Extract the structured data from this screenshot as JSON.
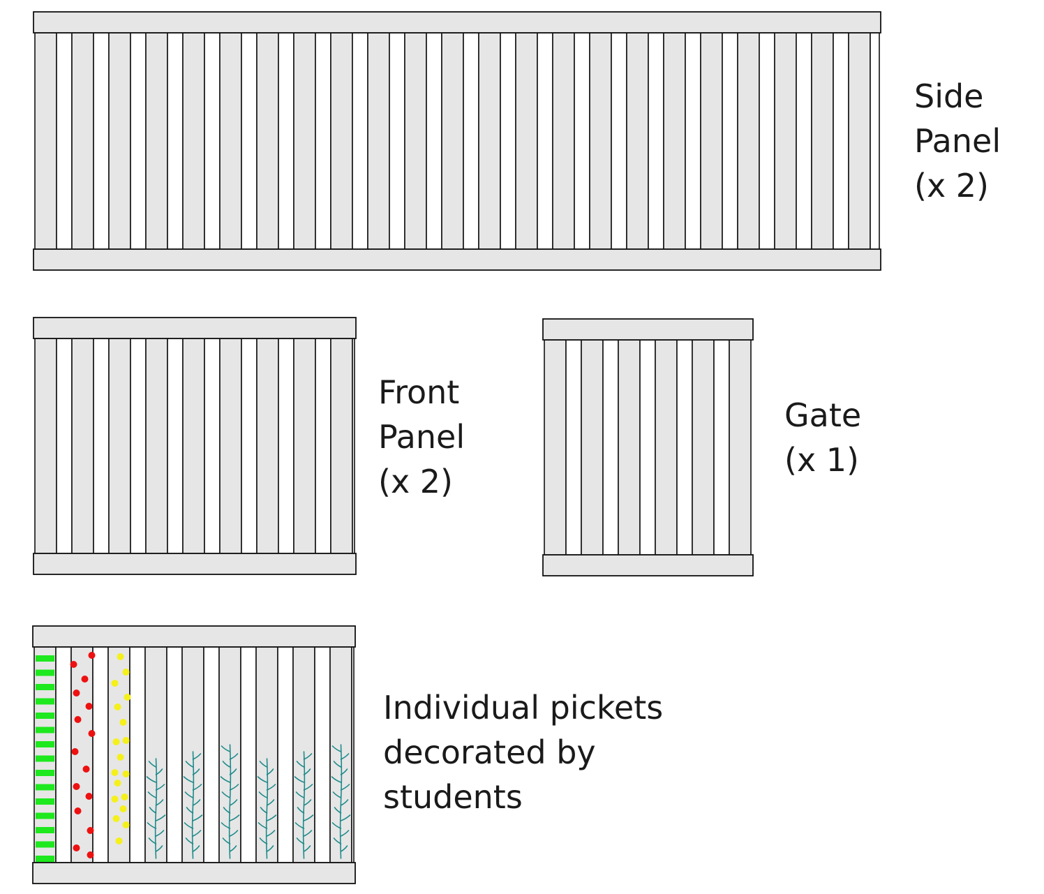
{
  "panels": {
    "side": {
      "lines": [
        "Side",
        "Panel",
        "(x 2)"
      ]
    },
    "front": {
      "lines": [
        "Front",
        "Panel",
        "(x 2)"
      ]
    },
    "gate": {
      "lines": [
        "Gate",
        "(x 1)"
      ]
    },
    "decorated": {
      "lines": [
        "Individual pickets",
        "decorated by",
        "students"
      ]
    }
  },
  "colors": {
    "picket_fill": "#e6e6e6",
    "gap_fill": "#ffffff",
    "outline": "#111111",
    "stripe_green": "#1ee81e",
    "dot_red": "#ee1111",
    "dot_yellow": "#f5f01a",
    "leaf_teal": "#1f8a8a"
  },
  "decorations": [
    "green-stripes",
    "red-dots",
    "yellow-dots",
    "fern",
    "fern",
    "fern",
    "fern",
    "fern",
    "fern"
  ]
}
